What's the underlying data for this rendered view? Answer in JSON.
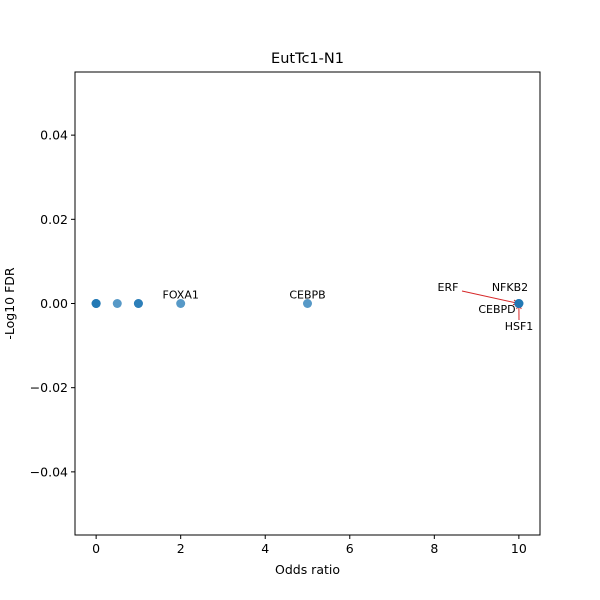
{
  "chart_data": {
    "type": "scatter",
    "title": "EutTc1-N1",
    "xlabel": "Odds ratio",
    "ylabel": "-Log10 FDR",
    "xlim": [
      -0.5,
      10.5
    ],
    "ylim": [
      -0.055,
      0.055
    ],
    "xticks": [
      0,
      2,
      4,
      6,
      8,
      10
    ],
    "yticks": [
      -0.04,
      -0.02,
      0.0,
      0.02,
      0.04
    ],
    "xtick_labels": [
      "0",
      "2",
      "4",
      "6",
      "8",
      "10"
    ],
    "ytick_labels": [
      "−0.04",
      "−0.02",
      "0.00",
      "0.02",
      "0.04"
    ],
    "grid": false,
    "point_color": "#1f77b4",
    "arrow_color": "#d62728",
    "points": [
      {
        "x": 0,
        "y": 0
      },
      {
        "x": 0,
        "y": 0
      },
      {
        "x": 0,
        "y": 0
      },
      {
        "x": 0.5,
        "y": 0
      },
      {
        "x": 1,
        "y": 0
      },
      {
        "x": 1,
        "y": 0
      },
      {
        "x": 2,
        "y": 0
      },
      {
        "x": 5,
        "y": 0
      },
      {
        "x": 10,
        "y": 0
      },
      {
        "x": 10,
        "y": 0
      },
      {
        "x": 10,
        "y": 0
      }
    ],
    "annotations": [
      {
        "text": "FOXA1",
        "x": 2,
        "y": 0
      },
      {
        "text": "CEBPB",
        "x": 5,
        "y": 0
      },
      {
        "text": "ERF",
        "x": 10,
        "y": 0
      },
      {
        "text": "NFKB2",
        "x": 10,
        "y": 0
      },
      {
        "text": "CEBPD",
        "x": 10,
        "y": 0
      },
      {
        "text": "HSF1",
        "x": 10,
        "y": 0
      }
    ]
  }
}
